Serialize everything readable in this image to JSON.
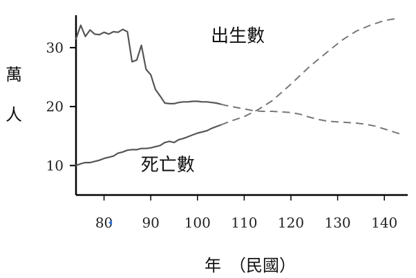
{
  "chart_data": {
    "type": "line",
    "title": "",
    "xlabel": "年　（民國）",
    "ylabel": "萬\n人",
    "xlim": [
      74,
      145
    ],
    "ylim": [
      5,
      35.5
    ],
    "x_ticks": [
      80,
      90,
      100,
      110,
      120,
      130,
      140
    ],
    "y_ticks": [
      10,
      20,
      30
    ],
    "grid": false,
    "legend": "none",
    "projection_start_x": 105,
    "series": [
      {
        "name": "出生數",
        "color": "#555555",
        "points": [
          [
            74,
            31.5
          ],
          [
            75,
            33.8
          ],
          [
            76,
            31.9
          ],
          [
            77,
            33.0
          ],
          [
            78,
            32.3
          ],
          [
            79,
            32.2
          ],
          [
            80,
            32.6
          ],
          [
            81,
            32.3
          ],
          [
            82,
            32.7
          ],
          [
            83,
            32.6
          ],
          [
            84,
            33.1
          ],
          [
            85,
            32.7
          ],
          [
            86,
            27.6
          ],
          [
            87,
            27.9
          ],
          [
            88,
            30.4
          ],
          [
            89,
            26.3
          ],
          [
            90,
            25.4
          ],
          [
            91,
            22.9
          ],
          [
            92,
            21.8
          ],
          [
            93,
            20.6
          ],
          [
            94,
            20.5
          ],
          [
            95,
            20.5
          ],
          [
            96,
            20.7
          ],
          [
            97,
            20.8
          ],
          [
            98,
            20.8
          ],
          [
            99,
            20.9
          ],
          [
            100,
            20.9
          ],
          [
            101,
            20.8
          ],
          [
            102,
            20.8
          ],
          [
            103,
            20.7
          ],
          [
            104,
            20.6
          ],
          [
            105,
            20.4
          ],
          [
            106,
            20.2
          ],
          [
            108,
            19.9
          ],
          [
            110,
            19.6
          ],
          [
            112,
            19.3
          ],
          [
            114,
            19.2
          ],
          [
            116,
            19.2
          ],
          [
            118,
            19.1
          ],
          [
            120,
            19.0
          ],
          [
            122,
            18.7
          ],
          [
            124,
            18.2
          ],
          [
            126,
            17.8
          ],
          [
            128,
            17.5
          ],
          [
            130,
            17.4
          ],
          [
            132,
            17.3
          ],
          [
            134,
            17.2
          ],
          [
            136,
            17.0
          ],
          [
            138,
            16.7
          ],
          [
            140,
            16.2
          ],
          [
            142,
            15.7
          ],
          [
            144,
            15.2
          ]
        ]
      },
      {
        "name": "死亡數",
        "color": "#555555",
        "points": [
          [
            74,
            10.0
          ],
          [
            75,
            10.3
          ],
          [
            76,
            10.5
          ],
          [
            77,
            10.5
          ],
          [
            78,
            10.7
          ],
          [
            79,
            10.9
          ],
          [
            80,
            11.2
          ],
          [
            81,
            11.4
          ],
          [
            82,
            11.6
          ],
          [
            83,
            12.1
          ],
          [
            84,
            12.3
          ],
          [
            85,
            12.6
          ],
          [
            86,
            12.7
          ],
          [
            87,
            12.7
          ],
          [
            88,
            12.9
          ],
          [
            89,
            12.9
          ],
          [
            90,
            13.0
          ],
          [
            91,
            13.2
          ],
          [
            92,
            13.4
          ],
          [
            93,
            13.9
          ],
          [
            94,
            14.1
          ],
          [
            95,
            13.9
          ],
          [
            96,
            14.4
          ],
          [
            97,
            14.6
          ],
          [
            98,
            14.9
          ],
          [
            99,
            15.2
          ],
          [
            100,
            15.5
          ],
          [
            101,
            15.7
          ],
          [
            102,
            15.9
          ],
          [
            103,
            16.3
          ],
          [
            104,
            16.6
          ],
          [
            105,
            16.9
          ],
          [
            107,
            17.5
          ],
          [
            110,
            18.3
          ],
          [
            113,
            19.5
          ],
          [
            116,
            21.0
          ],
          [
            120,
            23.8
          ],
          [
            124,
            26.8
          ],
          [
            128,
            29.4
          ],
          [
            131,
            31.3
          ],
          [
            134,
            32.8
          ],
          [
            137,
            33.8
          ],
          [
            140,
            34.6
          ],
          [
            143,
            35.0
          ]
        ]
      }
    ],
    "annotations": [
      {
        "text": "出生數",
        "x": 111,
        "y": 31.0
      },
      {
        "text": "死亡數",
        "x": 96,
        "y": 9.1
      }
    ],
    "stray_mark": {
      "x": 82.0,
      "y": 3.0,
      "color": "#2f6fd6"
    }
  }
}
